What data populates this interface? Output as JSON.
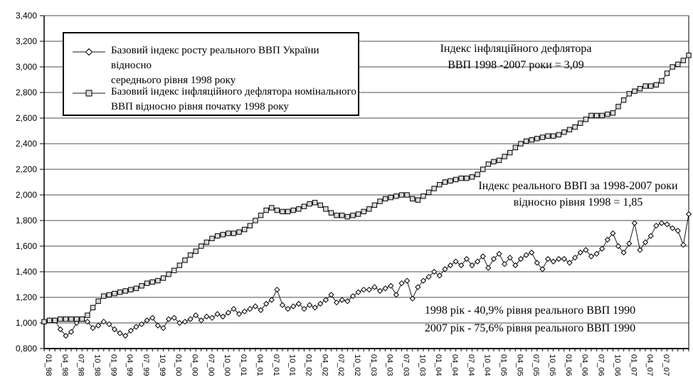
{
  "chart_data": {
    "type": "line",
    "title": "",
    "months": 120,
    "x_first_month": "01_98",
    "x_last_month": "12_07",
    "ylim": [
      0.8,
      3.4
    ],
    "grid": "horizontal",
    "legend_position": "top-left-inside",
    "y_tick_values": [
      0.8,
      1.0,
      1.2,
      1.4,
      1.6,
      1.8,
      2.0,
      2.2,
      2.4,
      2.6,
      2.8,
      3.0,
      3.2,
      3.4
    ],
    "y_tick_labels": [
      "0,800",
      "1,000",
      "1,200",
      "1,400",
      "1,600",
      "1,800",
      "2,000",
      "2,200",
      "2,400",
      "2,600",
      "2,800",
      "3,000",
      "3,200",
      "3,400"
    ],
    "x_tick_labels": [
      "01_98",
      "04_98",
      "07_98",
      "10_98",
      "01_99",
      "04_99",
      "07_99",
      "10_99",
      "01_00",
      "04_00",
      "07_00",
      "10_00",
      "01_01",
      "04_01",
      "07_01",
      "10_01",
      "01_02",
      "04_02",
      "07_02",
      "10_02",
      "01_03",
      "04_03",
      "07_03",
      "10_03",
      "01_04",
      "04_04",
      "07_04",
      "10_04",
      "01_05",
      "04_05",
      "07_05",
      "10_05",
      "01_06",
      "04_06",
      "07_06",
      "10_06",
      "01_07",
      "04_07",
      "07_07"
    ],
    "series": [
      {
        "id": "real_gdp",
        "marker": "diamond",
        "marker_fill": "#ffffff",
        "line_color": "#1a1a1a",
        "name_lines": [
          "Базовий індекс росту реального ВВП України відносно",
          "середнього рівня 1998 року"
        ],
        "values": [
          1.01,
          1.02,
          1.02,
          0.95,
          0.9,
          0.93,
          1.0,
          1.03,
          1.01,
          0.96,
          0.98,
          1.01,
          0.99,
          0.95,
          0.92,
          0.9,
          0.94,
          0.97,
          0.99,
          1.02,
          1.04,
          0.98,
          0.96,
          1.03,
          1.04,
          1.0,
          1.01,
          1.03,
          1.06,
          1.02,
          1.05,
          1.04,
          1.07,
          1.05,
          1.08,
          1.11,
          1.07,
          1.09,
          1.11,
          1.13,
          1.1,
          1.15,
          1.18,
          1.26,
          1.14,
          1.11,
          1.13,
          1.15,
          1.11,
          1.14,
          1.12,
          1.15,
          1.18,
          1.22,
          1.16,
          1.18,
          1.17,
          1.21,
          1.24,
          1.26,
          1.26,
          1.28,
          1.25,
          1.27,
          1.29,
          1.22,
          1.31,
          1.33,
          1.19,
          1.28,
          1.33,
          1.36,
          1.4,
          1.37,
          1.42,
          1.45,
          1.48,
          1.45,
          1.5,
          1.45,
          1.48,
          1.52,
          1.43,
          1.5,
          1.54,
          1.46,
          1.51,
          1.45,
          1.5,
          1.53,
          1.55,
          1.47,
          1.42,
          1.5,
          1.48,
          1.5,
          1.5,
          1.47,
          1.51,
          1.55,
          1.57,
          1.52,
          1.54,
          1.58,
          1.65,
          1.7,
          1.6,
          1.55,
          1.62,
          1.78,
          1.57,
          1.63,
          1.68,
          1.76,
          1.78,
          1.77,
          1.74,
          1.72,
          1.61,
          1.85
        ]
      },
      {
        "id": "deflator",
        "marker": "square",
        "marker_fill": "#d9d9d9",
        "line_color": "#1a1a1a",
        "name_lines": [
          "Базовий індекс інфляційного дефлятора номінального",
          "ВВП відносно рівня початку 1998 року"
        ],
        "values": [
          1.01,
          1.02,
          1.02,
          1.03,
          1.03,
          1.03,
          1.03,
          1.03,
          1.06,
          1.12,
          1.17,
          1.21,
          1.22,
          1.23,
          1.24,
          1.25,
          1.26,
          1.27,
          1.29,
          1.31,
          1.32,
          1.33,
          1.35,
          1.38,
          1.41,
          1.45,
          1.49,
          1.53,
          1.56,
          1.6,
          1.63,
          1.66,
          1.68,
          1.69,
          1.7,
          1.7,
          1.71,
          1.73,
          1.76,
          1.8,
          1.84,
          1.88,
          1.9,
          1.88,
          1.87,
          1.87,
          1.88,
          1.89,
          1.91,
          1.93,
          1.94,
          1.92,
          1.89,
          1.86,
          1.84,
          1.84,
          1.83,
          1.84,
          1.85,
          1.87,
          1.89,
          1.92,
          1.95,
          1.97,
          1.98,
          1.99,
          2.0,
          2.0,
          1.97,
          1.96,
          1.99,
          2.02,
          2.05,
          2.08,
          2.1,
          2.11,
          2.12,
          2.13,
          2.13,
          2.14,
          2.16,
          2.2,
          2.24,
          2.26,
          2.27,
          2.3,
          2.33,
          2.37,
          2.4,
          2.42,
          2.43,
          2.44,
          2.45,
          2.46,
          2.46,
          2.47,
          2.49,
          2.51,
          2.53,
          2.56,
          2.59,
          2.62,
          2.62,
          2.62,
          2.63,
          2.64,
          2.69,
          2.74,
          2.79,
          2.81,
          2.83,
          2.85,
          2.85,
          2.86,
          2.89,
          2.95,
          3.0,
          3.02,
          3.05,
          3.09
        ]
      }
    ],
    "annotations": {
      "deflator": {
        "lines": [
          "Індекс інфляційного дефлятора",
          "ВВП 1998 -2007 роки = 3,09"
        ]
      },
      "real_gdp": {
        "lines": [
          "Індекс реального ВВП за 1998-2007 роки",
          "відносно рівня 1998 = 1,85"
        ]
      },
      "gdp_1990": {
        "lines": [
          "1998 рік - 40,9% рівня реального ВВП 1990",
          "2007 рік - 75,6% рівня реального ВВП 1990"
        ]
      }
    }
  }
}
